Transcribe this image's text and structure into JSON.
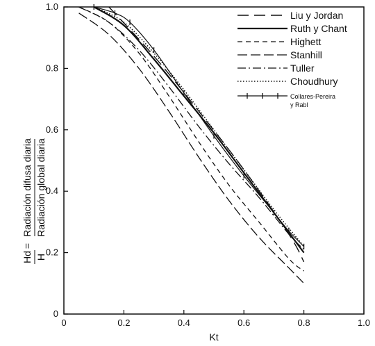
{
  "chart_data": {
    "type": "line",
    "xlabel": "Kt",
    "ylabel_prefix": "Hd",
    "ylabel_eq": "=",
    "ylabel_denominator": "H",
    "ylabel_fraction_top": "Radiación difusa diaria",
    "ylabel_fraction_bottom": "Radiación global diaria",
    "xlim": [
      0,
      1.0
    ],
    "ylim": [
      0,
      1.0
    ],
    "xticks": [
      "0",
      "0.2",
      "0.4",
      "0.6",
      "0.8",
      "1.0"
    ],
    "yticks": [
      "0",
      "0.2",
      "0.4",
      "0.6",
      "0.8",
      "1.0"
    ],
    "legend_position": "top-right",
    "series": [
      {
        "name": "Liu y Jordan",
        "style": "long-dash",
        "x": [
          0.15,
          0.3,
          0.45,
          0.6,
          0.75,
          0.8
        ],
        "y": [
          1.0,
          0.84,
          0.66,
          0.47,
          0.26,
          0.17
        ]
      },
      {
        "name": "Ruth y Chant",
        "style": "solid-bold",
        "x": [
          0.1,
          0.2,
          0.3,
          0.4,
          0.5,
          0.6,
          0.7,
          0.8
        ],
        "y": [
          1.0,
          0.94,
          0.83,
          0.71,
          0.59,
          0.46,
          0.33,
          0.2
        ]
      },
      {
        "name": "Highett",
        "style": "short-dash",
        "x": [
          0.05,
          0.15,
          0.25,
          0.35,
          0.45,
          0.55,
          0.65,
          0.75,
          0.8
        ],
        "y": [
          1.0,
          0.95,
          0.85,
          0.71,
          0.56,
          0.42,
          0.3,
          0.18,
          0.14
        ]
      },
      {
        "name": "Stanhill",
        "style": "dash-long-gap",
        "x": [
          0.05,
          0.15,
          0.25,
          0.35,
          0.45,
          0.55,
          0.65,
          0.75,
          0.8
        ],
        "y": [
          0.98,
          0.91,
          0.8,
          0.66,
          0.51,
          0.37,
          0.25,
          0.15,
          0.1
        ]
      },
      {
        "name": "Tuller",
        "style": "dash-dot",
        "x": [
          0.05,
          0.15,
          0.25,
          0.35,
          0.45,
          0.55,
          0.65,
          0.75,
          0.8
        ],
        "y": [
          1.0,
          0.95,
          0.86,
          0.74,
          0.61,
          0.49,
          0.38,
          0.26,
          0.21
        ]
      },
      {
        "name": "Choudhury",
        "style": "dotted",
        "x": [
          0.1,
          0.2,
          0.3,
          0.4,
          0.5,
          0.6,
          0.7,
          0.8
        ],
        "y": [
          1.0,
          0.95,
          0.85,
          0.73,
          0.6,
          0.47,
          0.34,
          0.22
        ]
      },
      {
        "name": "Collares-Pereira y Rabl",
        "style": "solid-cross",
        "x": [
          0.1,
          0.17,
          0.22,
          0.3,
          0.4,
          0.5,
          0.6,
          0.7,
          0.75,
          0.8
        ],
        "y": [
          1.0,
          0.98,
          0.95,
          0.86,
          0.72,
          0.58,
          0.45,
          0.33,
          0.27,
          0.22
        ]
      }
    ]
  }
}
